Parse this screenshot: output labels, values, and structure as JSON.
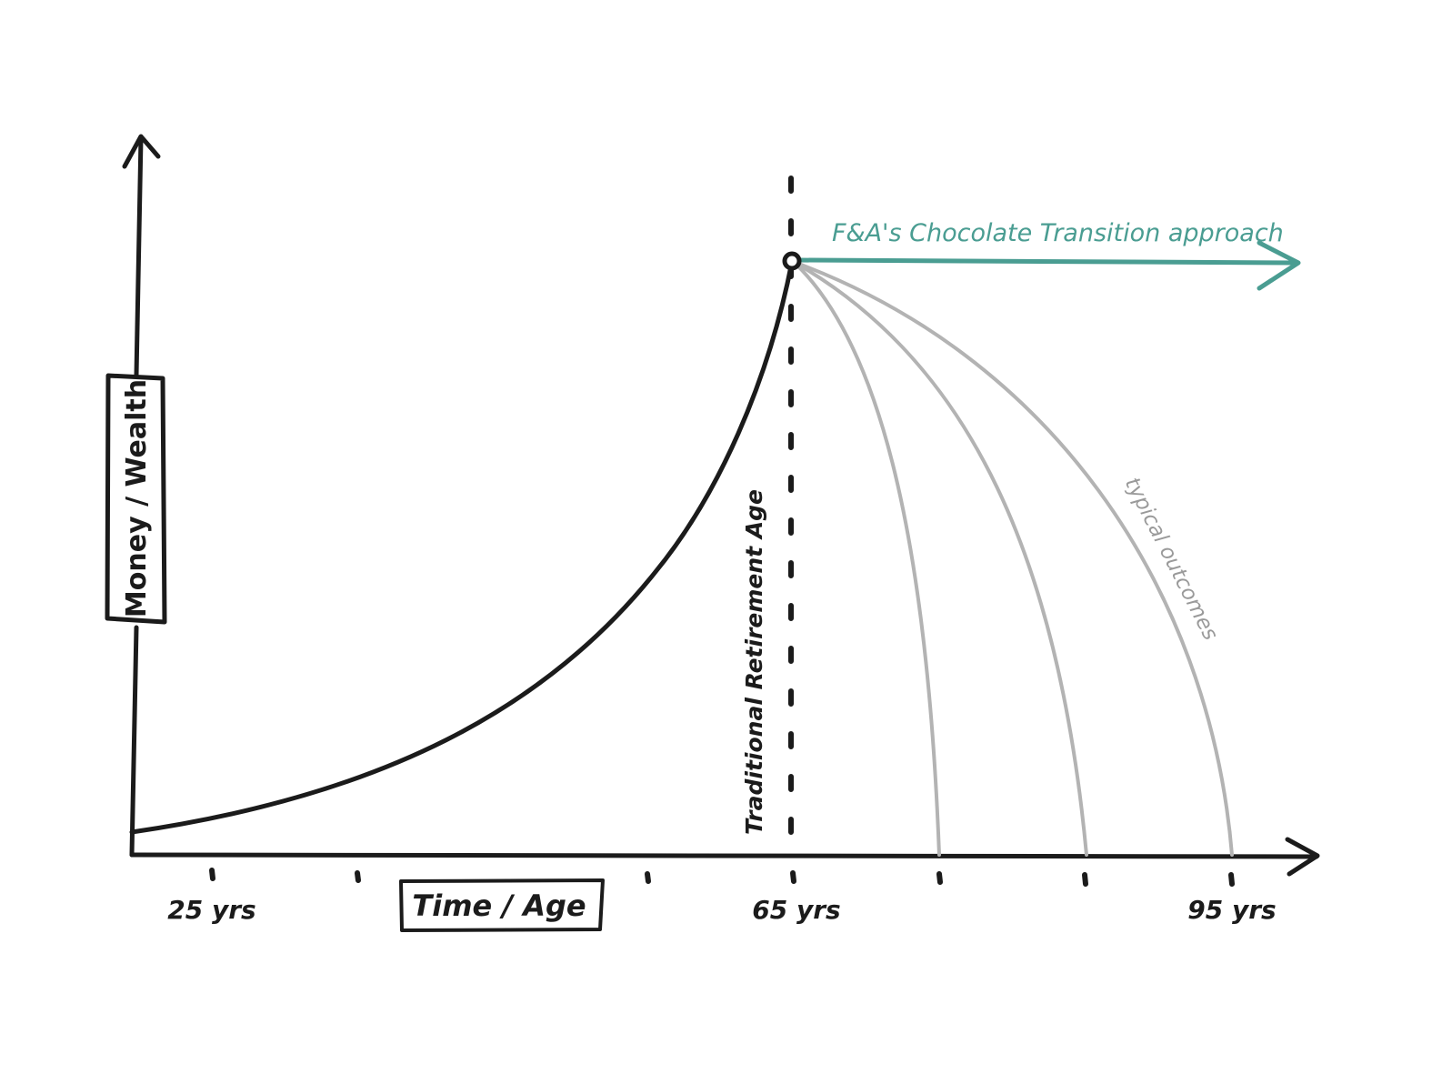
{
  "diagram": {
    "y_axis_label": "Money / Wealth",
    "x_axis_label": "Time / Age",
    "retirement_label": "Traditional Retirement Age",
    "approach_label": "F&A's Chocolate Transition approach",
    "outcomes_label": "typical outcomes",
    "tick_labels": [
      "25 yrs",
      "65 yrs",
      "95 yrs"
    ],
    "colors": {
      "ink": "#1b1b1b",
      "accent": "#4a9d92",
      "outcomes": "#b3b3b3"
    }
  }
}
